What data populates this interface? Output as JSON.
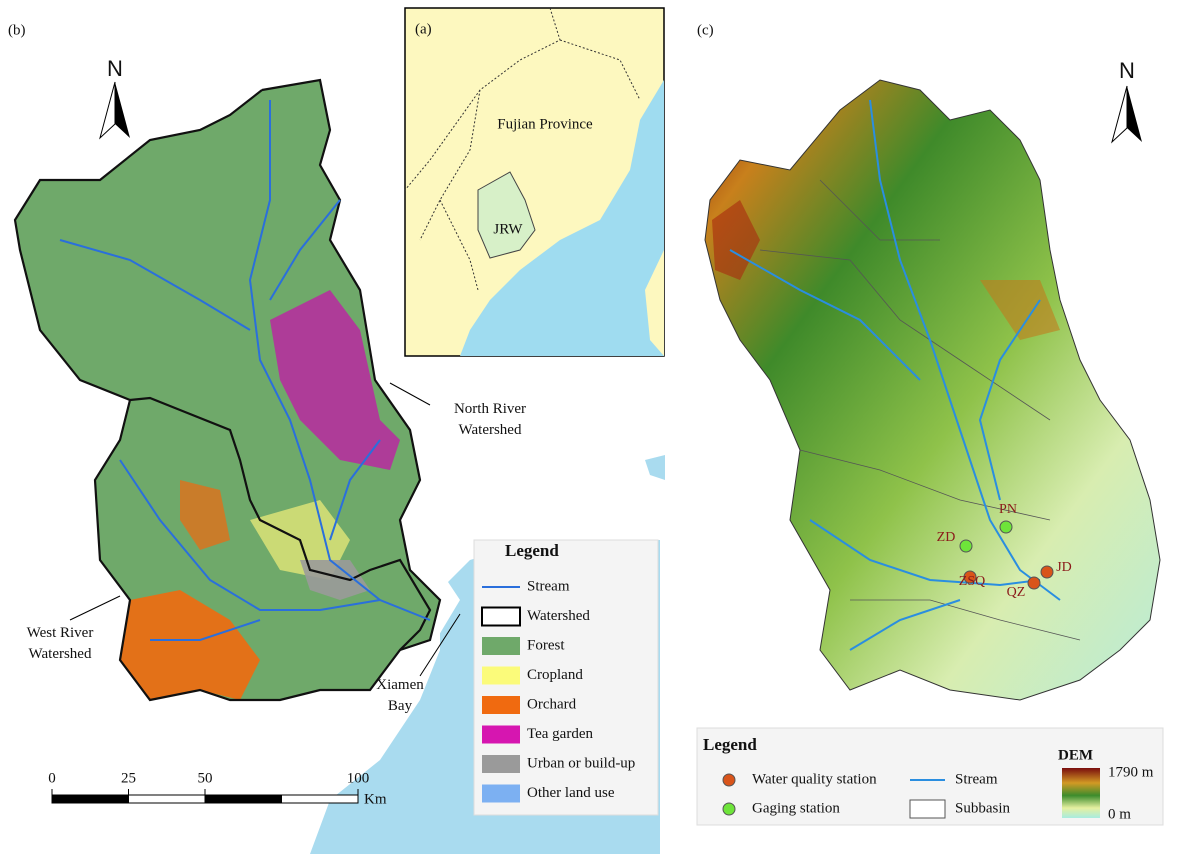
{
  "panel_b": {
    "label": "(b)",
    "north": "N",
    "annotations": [
      "North River\nWatershed",
      "West River\nWatershed",
      "Xiamen\nBay"
    ],
    "scale_bar": {
      "ticks": [
        0,
        25,
        50,
        100
      ],
      "unit": "Km"
    },
    "legend": {
      "title": "Legend",
      "items": [
        "Stream",
        "Watershed",
        "Forest",
        "Cropland",
        "Orchard",
        "Tea garden",
        "Urban or build-up",
        "Other land use"
      ]
    }
  },
  "panel_a": {
    "label": "(a)",
    "province": "Fujian Province",
    "watershed": "JRW"
  },
  "panel_c": {
    "label": "(c)",
    "north": "N",
    "stations": [
      {
        "name": "PN",
        "type": "gaging"
      },
      {
        "name": "ZD",
        "type": "gaging"
      },
      {
        "name": "JD",
        "type": "water_quality"
      },
      {
        "name": "ZSQ",
        "type": "water_quality"
      },
      {
        "name": "QZ",
        "type": "water_quality"
      }
    ],
    "legend": {
      "title": "Legend",
      "items": [
        "Water quality station",
        "Gaging station",
        "Stream",
        "Subbasin"
      ],
      "dem_title": "DEM",
      "dem_max": "1790 m",
      "dem_min": "0 m"
    }
  }
}
